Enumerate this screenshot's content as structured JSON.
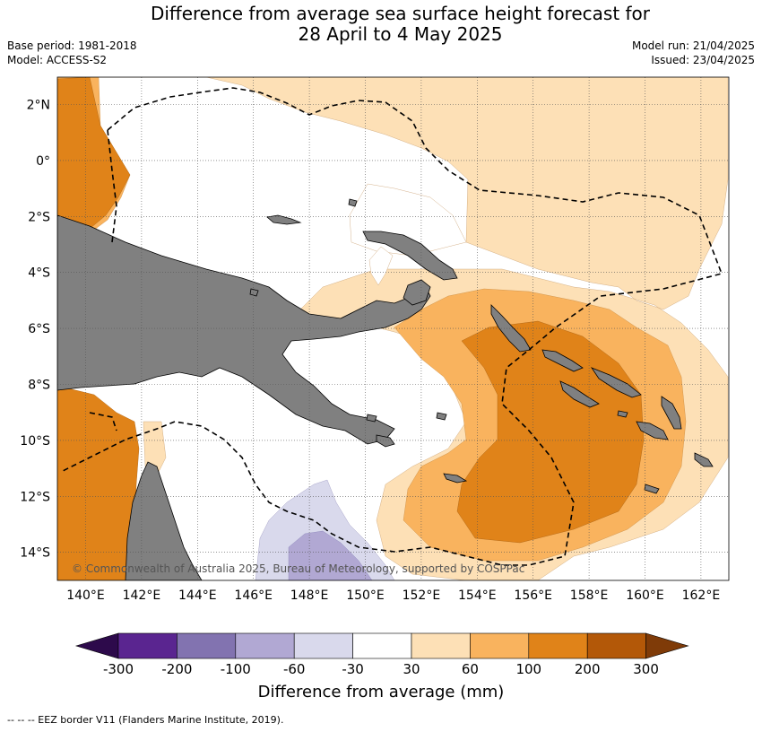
{
  "title_line1": "Difference from average sea surface height forecast for",
  "title_line2": "28 April to 4 May 2025",
  "base_period": "Base period: 1981-2018",
  "model": "Model: ACCESS-S2",
  "model_run": "Model run: 21/04/2025",
  "issued": "Issued: 23/04/2025",
  "lat_labels": [
    "2°N",
    "0°",
    "2°S",
    "4°S",
    "6°S",
    "8°S",
    "10°S",
    "12°S",
    "14°S"
  ],
  "lon_labels": [
    "140°E",
    "142°E",
    "144°E",
    "146°E",
    "148°E",
    "150°E",
    "152°E",
    "154°E",
    "156°E",
    "158°E",
    "160°E",
    "162°E"
  ],
  "copyright": "© Commonwealth of Australia 2025, Bureau of Meteorology, supported by COSPPac",
  "colorbar": {
    "ticks": [
      "-300",
      "-200",
      "-100",
      "-60",
      "-30",
      "30",
      "60",
      "100",
      "200",
      "300"
    ],
    "colors": {
      "below_-300": "#2d0a4b",
      "-300_-200": "#5a2590",
      "-200_-100": "#8273b0",
      "-100_-60": "#b1a8d3",
      "-60_-30": "#d9d9ec",
      "-30_30": "#ffffff",
      "30_60": "#fde0b6",
      "60_100": "#f9b35e",
      "100_200": "#e08319",
      "200_300": "#b35808",
      "above_300": "#7f3b08"
    },
    "label": "Difference from average (mm)"
  },
  "land_color": "#808080",
  "footnote": "--  --  -- EEZ border V11 (Flanders Marine Institute, 2019)."
}
